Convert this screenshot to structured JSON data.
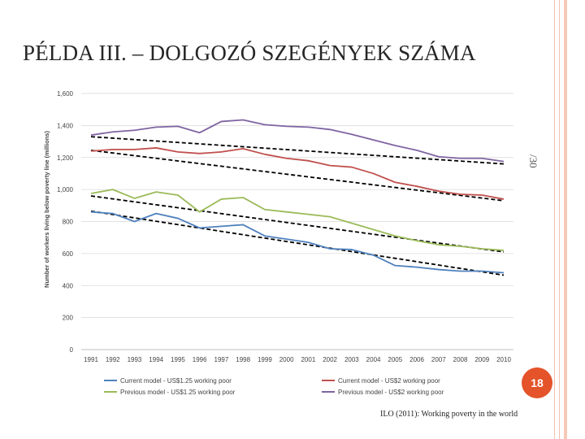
{
  "slide": {
    "title": "PÉLDA III. – DOLGOZÓ SZEGÉNYEK SZÁMA",
    "side_label": "/30",
    "page_number": "18",
    "source": "ILO (2011): Working poverty in the world"
  },
  "chart_data": {
    "type": "line",
    "title": "",
    "xlabel": "",
    "ylabel": "Number of workers living below poverty line (millions)",
    "x": [
      "1991",
      "1992",
      "1993",
      "1994",
      "1995",
      "1996",
      "1997",
      "1998",
      "1999",
      "2000",
      "2001",
      "2002",
      "2003",
      "2004",
      "2005",
      "2006",
      "2007",
      "2008",
      "2009",
      "2010"
    ],
    "ylim": [
      0,
      1600
    ],
    "yticks": [
      0,
      200,
      400,
      600,
      800,
      1000,
      1200,
      1400,
      1600
    ],
    "ytick_labels": [
      "0",
      "200",
      "400",
      "600",
      "800",
      "1,000",
      "1,200",
      "1,400",
      "1,600"
    ],
    "grid": true,
    "legend_position": "bottom",
    "series": [
      {
        "name": "Current model - US$1.25 working poor",
        "color": "#4f81bd",
        "values": [
          860,
          850,
          800,
          850,
          820,
          760,
          770,
          780,
          710,
          690,
          670,
          630,
          625,
          590,
          525,
          515,
          500,
          490,
          490,
          480
        ]
      },
      {
        "name": "Current model - US$2 working poor",
        "color": "#c0504d",
        "values": [
          1240,
          1250,
          1250,
          1260,
          1235,
          1225,
          1235,
          1255,
          1220,
          1195,
          1180,
          1150,
          1140,
          1100,
          1045,
          1020,
          990,
          970,
          965,
          940
        ]
      },
      {
        "name": "Previous model - US$1.25 working poor",
        "color": "#9bbb59",
        "values": [
          975,
          1000,
          945,
          985,
          965,
          860,
          940,
          950,
          875,
          860,
          845,
          830,
          790,
          750,
          710,
          680,
          655,
          645,
          630,
          620
        ]
      },
      {
        "name": "Previous model - US$2 working poor",
        "color": "#8064a2",
        "values": [
          1340,
          1360,
          1370,
          1390,
          1395,
          1355,
          1425,
          1435,
          1405,
          1395,
          1390,
          1375,
          1345,
          1310,
          1275,
          1245,
          1205,
          1195,
          1195,
          1175
        ]
      }
    ],
    "trend_lines": [
      {
        "from": [
          "1991",
          1330
        ],
        "to": [
          "2010",
          1160
        ]
      },
      {
        "from": [
          "1991",
          1245
        ],
        "to": [
          "2010",
          930
        ]
      },
      {
        "from": [
          "1991",
          960
        ],
        "to": [
          "2010",
          610
        ]
      },
      {
        "from": [
          "1991",
          865
        ],
        "to": [
          "2010",
          465
        ]
      }
    ]
  }
}
